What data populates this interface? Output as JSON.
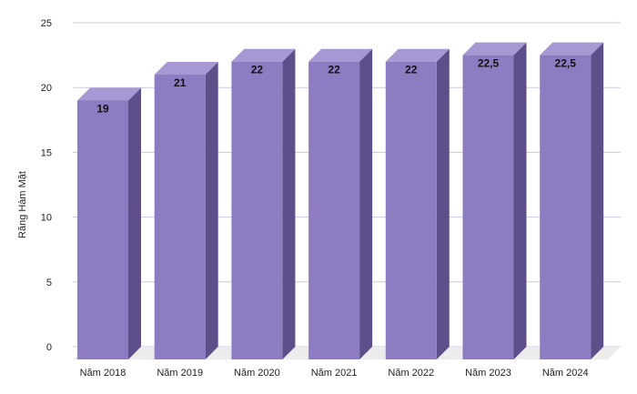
{
  "chart_data": {
    "type": "bar",
    "style": "3d-column",
    "categories": [
      "Năm 2018",
      "Năm 2019",
      "Năm 2020",
      "Năm 2021",
      "Năm 2022",
      "Năm 2023",
      "Năm 2024"
    ],
    "series": [
      {
        "values": [
          19,
          21,
          22,
          22,
          22,
          22.5,
          22.5
        ],
        "data_labels": [
          "19",
          "21",
          "22",
          "22",
          "22",
          "22,5",
          "22,5"
        ]
      }
    ],
    "ylabel": "Răng Hàm Mặt",
    "xlabel": "",
    "title": "",
    "ylim": [
      0,
      25
    ],
    "yticks": [
      0,
      5,
      10,
      15,
      20,
      25
    ],
    "grid": true,
    "legend": "none",
    "colors": {
      "bar_front": "#8e7cc3",
      "bar_top": "#a797d3",
      "bar_side": "#5e4f8a",
      "floor": "#ececec",
      "grid": "#c9c9e0"
    }
  }
}
